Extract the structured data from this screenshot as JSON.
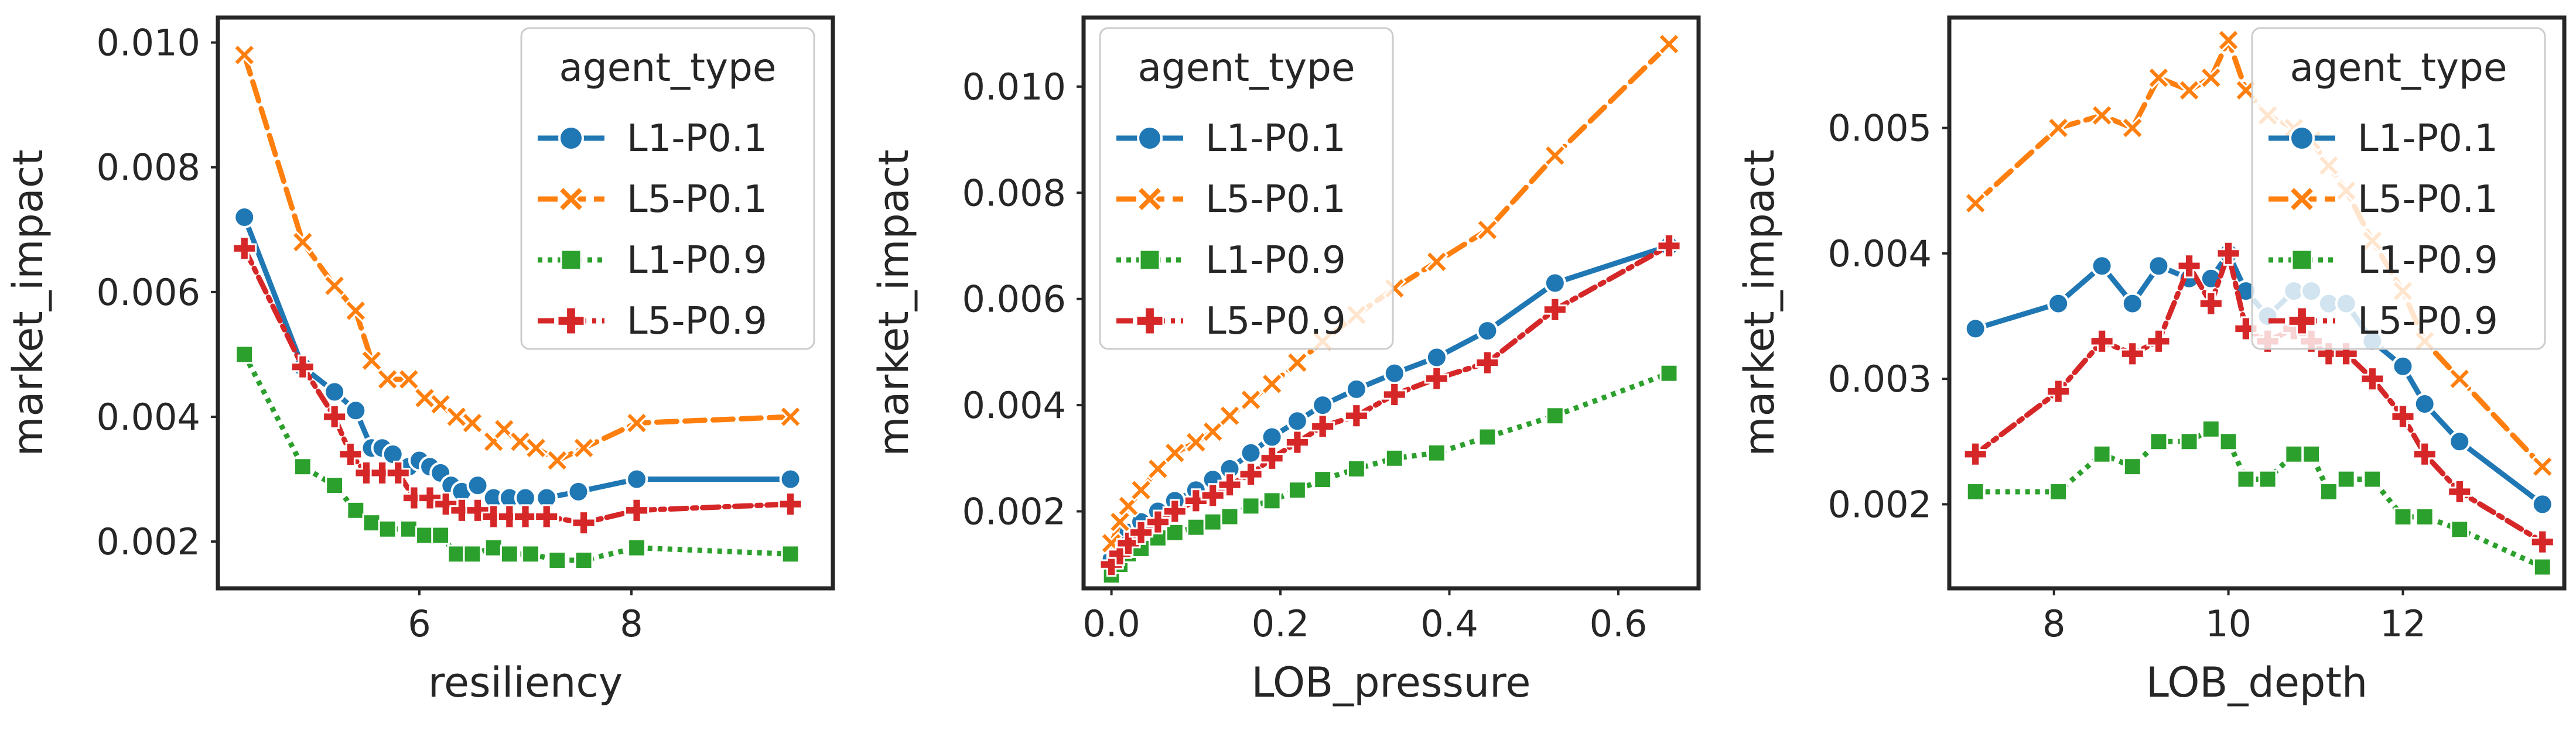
{
  "chart_data": [
    {
      "type": "line",
      "xlabel": "resiliency",
      "ylabel": "market_impact",
      "xlim": [
        4.1,
        9.9
      ],
      "ylim": [
        0.00125,
        0.0104
      ],
      "xticks": [
        6,
        8
      ],
      "yticks": [
        0.002,
        0.004,
        0.006,
        0.008,
        0.01
      ],
      "ytick_labels": [
        "0.002",
        "0.004",
        "0.006",
        "0.008",
        "0.010"
      ],
      "xtick_labels": [
        "6",
        "8"
      ],
      "grid": false,
      "legend": {
        "title": "agent_type",
        "placement": "top-right"
      },
      "series": [
        {
          "name": "L1-P0.1",
          "x": [
            4.35,
            4.9,
            5.2,
            5.4,
            5.55,
            5.65,
            5.75,
            5.9,
            6.0,
            6.1,
            6.2,
            6.3,
            6.4,
            6.55,
            6.7,
            6.85,
            7.0,
            7.2,
            7.5,
            8.05,
            9.5
          ],
          "y": [
            0.0072,
            0.0048,
            0.0044,
            0.0041,
            0.0035,
            0.0035,
            0.0034,
            0.0032,
            0.0033,
            0.0032,
            0.0031,
            0.0029,
            0.0028,
            0.0029,
            0.0027,
            0.0027,
            0.0027,
            0.0027,
            0.0028,
            0.003,
            0.003
          ]
        },
        {
          "name": "L5-P0.1",
          "x": [
            4.35,
            4.9,
            5.2,
            5.4,
            5.55,
            5.7,
            5.9,
            6.05,
            6.2,
            6.35,
            6.5,
            6.7,
            6.8,
            6.95,
            7.1,
            7.3,
            7.55,
            8.05,
            9.5
          ],
          "y": [
            0.0098,
            0.0068,
            0.0061,
            0.0057,
            0.0049,
            0.0046,
            0.0046,
            0.0043,
            0.0042,
            0.004,
            0.0039,
            0.0036,
            0.0038,
            0.0036,
            0.0035,
            0.0033,
            0.0035,
            0.0039,
            0.004
          ]
        },
        {
          "name": "L1-P0.9",
          "x": [
            4.35,
            4.9,
            5.2,
            5.4,
            5.55,
            5.7,
            5.9,
            6.05,
            6.2,
            6.35,
            6.5,
            6.7,
            6.85,
            7.05,
            7.3,
            7.55,
            8.05,
            9.5
          ],
          "y": [
            0.005,
            0.0032,
            0.0029,
            0.0025,
            0.0023,
            0.0022,
            0.0022,
            0.0021,
            0.0021,
            0.0018,
            0.0018,
            0.0019,
            0.0018,
            0.0018,
            0.0017,
            0.0017,
            0.0019,
            0.0018
          ]
        },
        {
          "name": "L5-P0.9",
          "x": [
            4.35,
            4.9,
            5.2,
            5.35,
            5.5,
            5.65,
            5.8,
            5.95,
            6.1,
            6.25,
            6.4,
            6.55,
            6.7,
            6.85,
            7.0,
            7.2,
            7.55,
            8.05,
            9.5
          ],
          "y": [
            0.0067,
            0.0048,
            0.004,
            0.0034,
            0.0031,
            0.0031,
            0.0031,
            0.0027,
            0.0027,
            0.0026,
            0.0025,
            0.0025,
            0.0024,
            0.0024,
            0.0024,
            0.0024,
            0.0023,
            0.0025,
            0.0026
          ]
        }
      ]
    },
    {
      "type": "line",
      "xlabel": "LOB_pressure",
      "ylabel": "market_impact",
      "xlim": [
        -0.033,
        0.695
      ],
      "ylim": [
        0.00055,
        0.0113
      ],
      "xticks": [
        0.0,
        0.2,
        0.4,
        0.6
      ],
      "yticks": [
        0.002,
        0.004,
        0.006,
        0.008,
        0.01
      ],
      "ytick_labels": [
        "0.002",
        "0.004",
        "0.006",
        "0.008",
        "0.010"
      ],
      "xtick_labels": [
        "0.0",
        "0.2",
        "0.4",
        "0.6"
      ],
      "grid": false,
      "legend": {
        "title": "agent_type",
        "placement": "top-left"
      },
      "series": [
        {
          "name": "L1-P0.1",
          "x": [
            0.0,
            0.01,
            0.02,
            0.035,
            0.055,
            0.075,
            0.1,
            0.12,
            0.14,
            0.165,
            0.19,
            0.22,
            0.25,
            0.29,
            0.335,
            0.385,
            0.445,
            0.525,
            0.66
          ],
          "y": [
            0.0011,
            0.0013,
            0.0016,
            0.0018,
            0.002,
            0.0022,
            0.0024,
            0.0026,
            0.0028,
            0.0031,
            0.0034,
            0.0037,
            0.004,
            0.0043,
            0.0046,
            0.0049,
            0.0054,
            0.0063,
            0.007
          ]
        },
        {
          "name": "L5-P0.1",
          "x": [
            0.0,
            0.01,
            0.02,
            0.035,
            0.055,
            0.075,
            0.1,
            0.12,
            0.14,
            0.165,
            0.19,
            0.22,
            0.25,
            0.29,
            0.335,
            0.385,
            0.445,
            0.525,
            0.66
          ],
          "y": [
            0.0014,
            0.0018,
            0.0021,
            0.0024,
            0.0028,
            0.0031,
            0.0033,
            0.0035,
            0.0038,
            0.0041,
            0.0044,
            0.0048,
            0.0052,
            0.0057,
            0.0062,
            0.0067,
            0.0073,
            0.0087,
            0.0108
          ]
        },
        {
          "name": "L1-P0.9",
          "x": [
            0.0,
            0.01,
            0.02,
            0.035,
            0.055,
            0.075,
            0.1,
            0.12,
            0.14,
            0.165,
            0.19,
            0.22,
            0.25,
            0.29,
            0.335,
            0.385,
            0.445,
            0.525,
            0.66
          ],
          "y": [
            0.0008,
            0.001,
            0.0012,
            0.0013,
            0.0015,
            0.0016,
            0.0017,
            0.0018,
            0.0019,
            0.0021,
            0.0022,
            0.0024,
            0.0026,
            0.0028,
            0.003,
            0.0031,
            0.0034,
            0.0038,
            0.0046
          ]
        },
        {
          "name": "L5-P0.9",
          "x": [
            0.0,
            0.01,
            0.02,
            0.035,
            0.055,
            0.075,
            0.1,
            0.12,
            0.14,
            0.165,
            0.19,
            0.22,
            0.25,
            0.29,
            0.335,
            0.385,
            0.445,
            0.525,
            0.66
          ],
          "y": [
            0.001,
            0.0012,
            0.0014,
            0.0016,
            0.0018,
            0.002,
            0.0022,
            0.0023,
            0.0025,
            0.0027,
            0.003,
            0.0033,
            0.0036,
            0.0038,
            0.0042,
            0.0045,
            0.0048,
            0.0058,
            0.007
          ]
        }
      ]
    },
    {
      "type": "line",
      "xlabel": "LOB_depth",
      "ylabel": "market_impact",
      "xlim": [
        6.8,
        13.85
      ],
      "ylim": [
        0.00133,
        0.00588
      ],
      "xticks": [
        8,
        10,
        12
      ],
      "yticks": [
        0.002,
        0.003,
        0.004,
        0.005
      ],
      "ytick_labels": [
        "0.002",
        "0.003",
        "0.004",
        "0.005"
      ],
      "xtick_labels": [
        "8",
        "10",
        "12"
      ],
      "grid": false,
      "legend": {
        "title": "agent_type",
        "placement": "top-right"
      },
      "series": [
        {
          "name": "L1-P0.1",
          "x": [
            7.1,
            8.05,
            8.55,
            8.9,
            9.2,
            9.55,
            9.8,
            10.0,
            10.2,
            10.45,
            10.75,
            10.95,
            11.15,
            11.35,
            11.65,
            12.0,
            12.25,
            12.65,
            13.6
          ],
          "y": [
            0.0034,
            0.0036,
            0.0039,
            0.0036,
            0.0039,
            0.0038,
            0.0038,
            0.004,
            0.0037,
            0.0035,
            0.0037,
            0.0037,
            0.0036,
            0.0036,
            0.0033,
            0.0031,
            0.0028,
            0.0025,
            0.002
          ]
        },
        {
          "name": "L5-P0.1",
          "x": [
            7.1,
            8.05,
            8.55,
            8.9,
            9.2,
            9.55,
            9.8,
            10.0,
            10.2,
            10.45,
            10.75,
            10.95,
            11.15,
            11.35,
            11.65,
            12.0,
            12.25,
            12.65,
            13.6
          ],
          "y": [
            0.0044,
            0.005,
            0.0051,
            0.005,
            0.0054,
            0.0053,
            0.0054,
            0.0057,
            0.0053,
            0.0051,
            0.005,
            0.0049,
            0.0047,
            0.0045,
            0.0041,
            0.0037,
            0.0033,
            0.003,
            0.0023
          ]
        },
        {
          "name": "L1-P0.9",
          "x": [
            7.1,
            8.05,
            8.55,
            8.9,
            9.2,
            9.55,
            9.8,
            10.0,
            10.2,
            10.45,
            10.75,
            10.95,
            11.15,
            11.35,
            11.65,
            12.0,
            12.25,
            12.65,
            13.6
          ],
          "y": [
            0.0021,
            0.0021,
            0.0024,
            0.0023,
            0.0025,
            0.0025,
            0.0026,
            0.0025,
            0.0022,
            0.0022,
            0.0024,
            0.0024,
            0.0021,
            0.0022,
            0.0022,
            0.0019,
            0.0019,
            0.0018,
            0.0015
          ]
        },
        {
          "name": "L5-P0.9",
          "x": [
            7.1,
            8.05,
            8.55,
            8.9,
            9.2,
            9.55,
            9.8,
            10.0,
            10.2,
            10.45,
            10.75,
            10.95,
            11.15,
            11.35,
            11.65,
            12.0,
            12.25,
            12.65,
            13.6
          ],
          "y": [
            0.0024,
            0.0029,
            0.0033,
            0.0032,
            0.0033,
            0.0039,
            0.0036,
            0.004,
            0.0034,
            0.0033,
            0.0034,
            0.0033,
            0.0032,
            0.0032,
            0.003,
            0.0027,
            0.0024,
            0.0021,
            0.0017
          ]
        }
      ]
    }
  ],
  "series_styles": [
    {
      "name": "L1-P0.1",
      "color": "#1f77b4",
      "dash": "solid",
      "marker": "circle"
    },
    {
      "name": "L5-P0.1",
      "color": "#ff7f0e",
      "dash": "dashed",
      "marker": "x"
    },
    {
      "name": "L1-P0.9",
      "color": "#2ca02c",
      "dash": "dotted",
      "marker": "square"
    },
    {
      "name": "L5-P0.9",
      "color": "#d62728",
      "dash": "dashdot",
      "marker": "plus"
    }
  ]
}
